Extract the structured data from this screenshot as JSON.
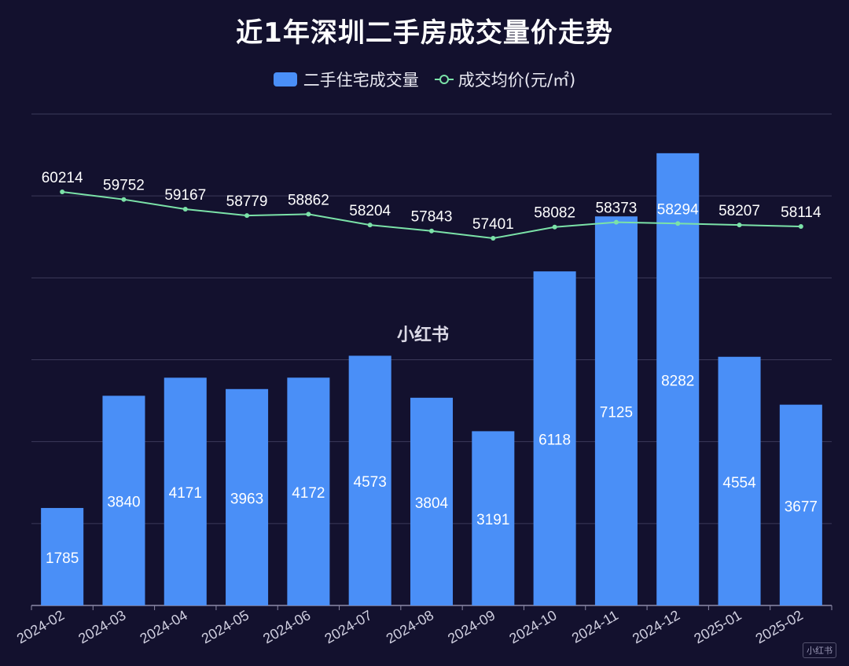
{
  "chart_data": {
    "type": "bar",
    "title": "近1年深圳二手房成交量价走势",
    "categories": [
      "2024-02",
      "2024-03",
      "2024-04",
      "2024-05",
      "2024-06",
      "2024-07",
      "2024-08",
      "2024-09",
      "2024-10",
      "2024-11",
      "2024-12",
      "2025-01",
      "2025-02"
    ],
    "series": [
      {
        "name": "二手住宅成交量",
        "type": "bar",
        "color": "#4a8ff7",
        "values": [
          1785,
          3840,
          4171,
          3963,
          4172,
          4573,
          3804,
          3191,
          6118,
          7125,
          8282,
          4554,
          3677
        ]
      },
      {
        "name": "成交均价(元/㎡)",
        "type": "line",
        "color": "#7be2a8",
        "values": [
          60214,
          59752,
          59167,
          58779,
          58862,
          58204,
          57843,
          57401,
          58082,
          58373,
          58294,
          58207,
          58114
        ]
      }
    ],
    "xlabel": "",
    "ylabel": "",
    "grid": true,
    "legend_position": "top-center"
  },
  "watermark": "小红书",
  "corner_mark": "小红书"
}
